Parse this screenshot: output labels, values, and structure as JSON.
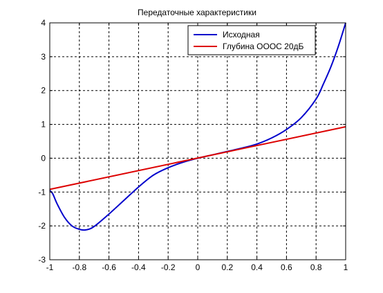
{
  "chart_data": {
    "type": "line",
    "title": "Передаточные характеристики",
    "xlabel": "",
    "ylabel": "",
    "xlim": [
      -1,
      1
    ],
    "ylim": [
      -3,
      4
    ],
    "x_ticks": [
      -1,
      -0.8,
      -0.6,
      -0.4,
      -0.2,
      0,
      0.2,
      0.4,
      0.6,
      0.8,
      1
    ],
    "y_ticks": [
      -3,
      -2,
      -1,
      0,
      1,
      2,
      3,
      4
    ],
    "x_tick_labels": [
      "-1",
      "-0.8",
      "-0.6",
      "-0.4",
      "-0.2",
      "0",
      "0.2",
      "0.4",
      "0.6",
      "0.8",
      "1"
    ],
    "y_tick_labels": [
      "-3",
      "-2",
      "-1",
      "0",
      "1",
      "2",
      "3",
      "4"
    ],
    "grid": true,
    "legend_position": "top-right",
    "series": [
      {
        "name": "Исходная",
        "color": "#0000cc",
        "x": [
          -1,
          -0.98,
          -0.95,
          -0.9,
          -0.85,
          -0.8,
          -0.76,
          -0.72,
          -0.68,
          -0.6,
          -0.5,
          -0.4,
          -0.3,
          -0.2,
          -0.1,
          0,
          0.1,
          0.2,
          0.3,
          0.4,
          0.5,
          0.6,
          0.7,
          0.8,
          0.85,
          0.9,
          0.95,
          1
        ],
        "y": [
          -0.95,
          -1.05,
          -1.35,
          -1.75,
          -2.0,
          -2.1,
          -2.12,
          -2.07,
          -1.95,
          -1.65,
          -1.25,
          -0.85,
          -0.5,
          -0.28,
          -0.12,
          0,
          0.1,
          0.2,
          0.3,
          0.42,
          0.6,
          0.85,
          1.2,
          1.75,
          2.2,
          2.7,
          3.3,
          4.0
        ]
      },
      {
        "name": "Глубина ОООС 20дБ",
        "color": "#dd0000",
        "x": [
          -1,
          1
        ],
        "y": [
          -0.92,
          0.93
        ]
      }
    ]
  }
}
